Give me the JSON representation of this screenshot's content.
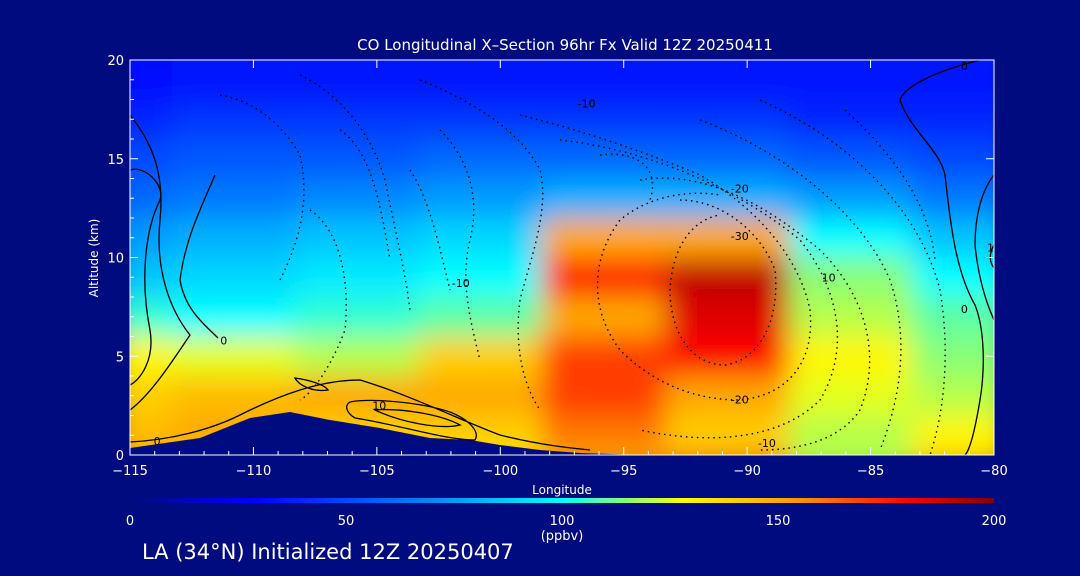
{
  "chart_data": {
    "type": "heatmap",
    "title": "CO Longitudinal X–Section 96hr  Fx Valid 12Z 20250411",
    "xlabel": "Longitude",
    "ylabel": "Altitude (km)",
    "xlim": [
      -115,
      -80
    ],
    "ylim": [
      0,
      20
    ],
    "xticks": [
      -115,
      -110,
      -105,
      -100,
      -95,
      -90,
      -85,
      -80
    ],
    "yticks": [
      0,
      5,
      10,
      15,
      20
    ],
    "colorbar": {
      "label": "(ppbv)",
      "min": 0,
      "max": 200,
      "ticks": [
        0,
        50,
        100,
        150,
        200
      ],
      "colors": [
        "#000b80",
        "#0000ff",
        "#0090ff",
        "#00ffff",
        "#ffff00",
        "#ff9000",
        "#ff0000",
        "#800000"
      ]
    },
    "x": [
      -115,
      -110,
      -105,
      -100,
      -95,
      -90,
      -85,
      -80
    ],
    "y": [
      0.5,
      2,
      4,
      6,
      8,
      10,
      12,
      14,
      16,
      18,
      19.5
    ],
    "z": [
      [
        150,
        140,
        130,
        135,
        150,
        155,
        120,
        140
      ],
      [
        145,
        150,
        140,
        140,
        160,
        140,
        120,
        130
      ],
      [
        140,
        145,
        150,
        150,
        170,
        150,
        125,
        120
      ],
      [
        130,
        125,
        120,
        140,
        170,
        180,
        130,
        115
      ],
      [
        105,
        100,
        105,
        110,
        150,
        185,
        120,
        110
      ],
      [
        85,
        90,
        95,
        100,
        175,
        190,
        115,
        100
      ],
      [
        75,
        80,
        85,
        90,
        150,
        150,
        100,
        85
      ],
      [
        60,
        65,
        70,
        75,
        80,
        80,
        75,
        65
      ],
      [
        50,
        55,
        55,
        60,
        60,
        60,
        55,
        50
      ],
      [
        40,
        45,
        45,
        45,
        45,
        45,
        40,
        40
      ],
      [
        30,
        35,
        35,
        35,
        35,
        35,
        35,
        35
      ]
    ],
    "contour_labels": [
      {
        "text": "-10",
        "lon": -96.5,
        "alt": 17.8
      },
      {
        "text": "-20",
        "lon": -90.3,
        "alt": 13.5
      },
      {
        "text": "-30",
        "lon": -90.3,
        "alt": 11.1
      },
      {
        "text": "-10",
        "lon": -101.6,
        "alt": 8.7
      },
      {
        "text": "10",
        "lon": -86.7,
        "alt": 9.0
      },
      {
        "text": "10",
        "lon": -80,
        "alt": 10.5
      },
      {
        "text": "0",
        "lon": -81.2,
        "alt": 7.4
      },
      {
        "text": "0",
        "lon": -111.2,
        "alt": 5.8
      },
      {
        "text": "10",
        "lon": -104.9,
        "alt": 2.5
      },
      {
        "text": "-20",
        "lon": -90.3,
        "alt": 2.8
      },
      {
        "text": "-10",
        "lon": -89.2,
        "alt": 0.6
      },
      {
        "text": "0",
        "lon": -113.9,
        "alt": 0.7
      },
      {
        "text": "0",
        "lon": -81.2,
        "alt": 19.7
      }
    ]
  },
  "footer": "LA (34°N) Initialized 12Z 20250407"
}
